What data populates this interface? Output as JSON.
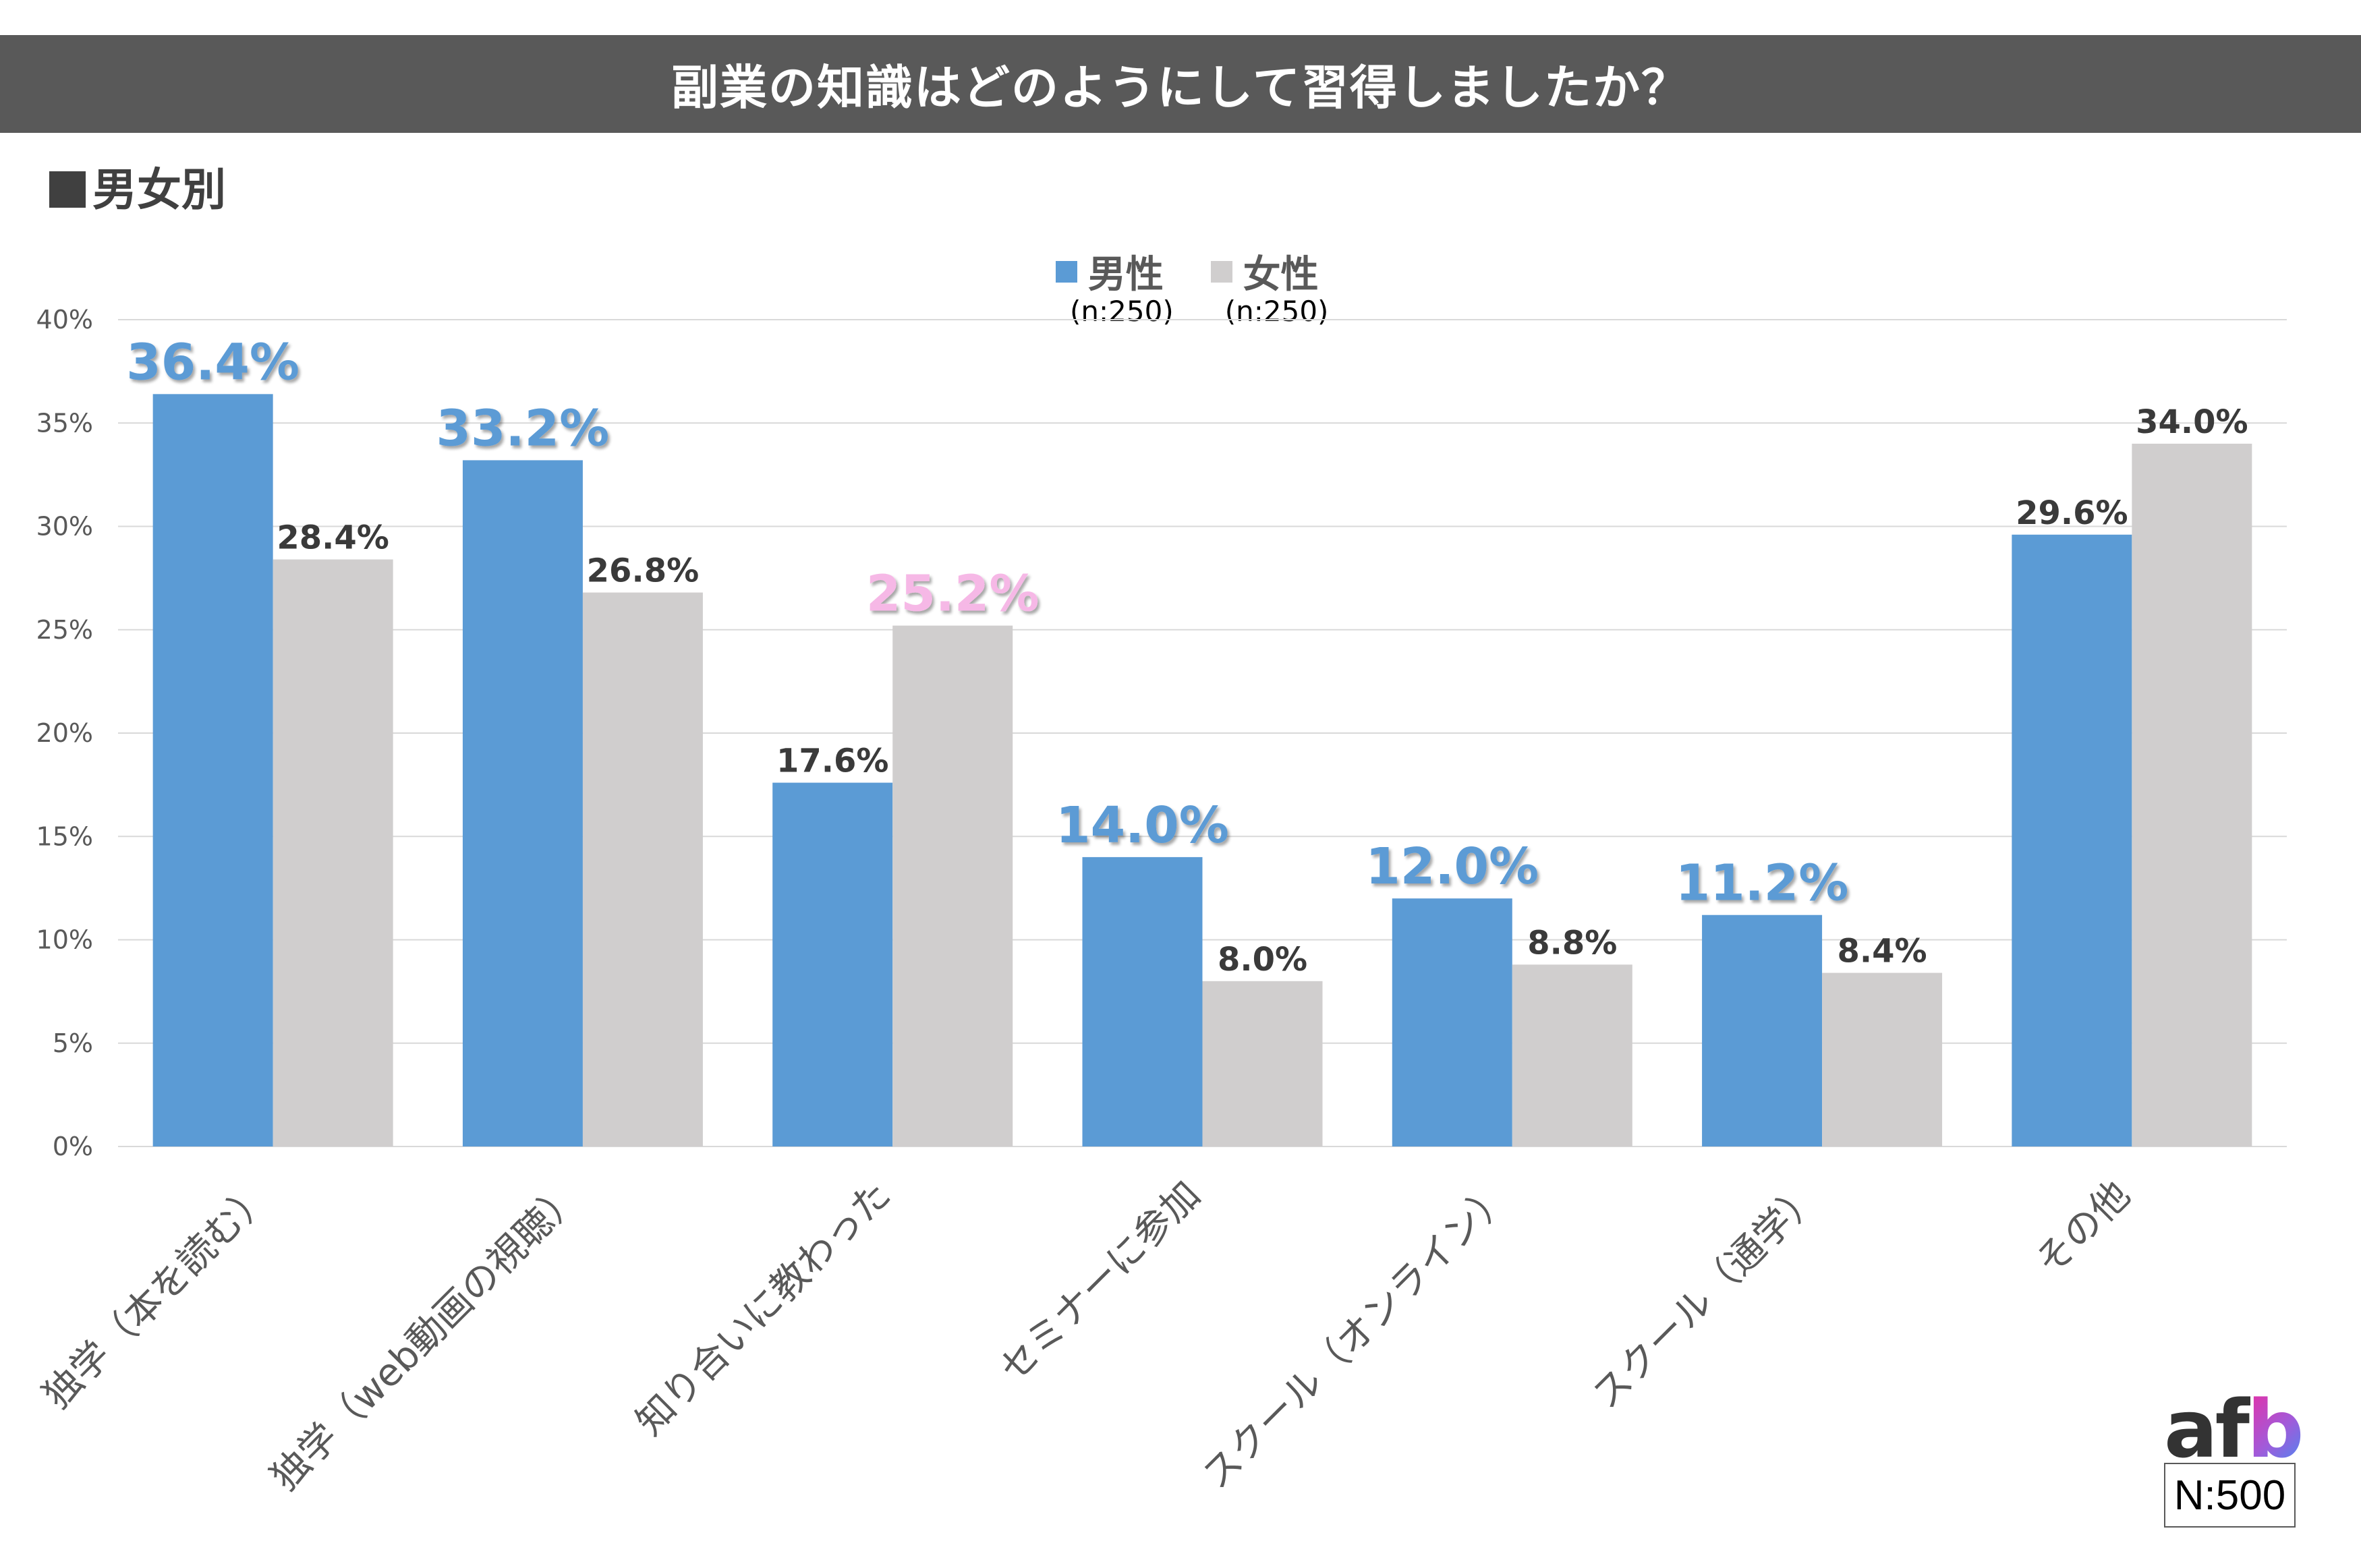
{
  "header": {
    "title": "副業の知識はどのようにして習得しましたか？"
  },
  "subtitle": "男女別",
  "legend": [
    {
      "label": "男性",
      "n": "(n:250)",
      "color": "#5b9bd5"
    },
    {
      "label": "女性",
      "n": "(n:250)",
      "color": "#d0cece"
    }
  ],
  "footer": {
    "logo_af": "af",
    "logo_b": "b",
    "sample_size": "N:500"
  },
  "colors": {
    "male_bar": "#5b9bd5",
    "female_bar": "#d0cece",
    "highlight_male_label": "#5b9bd5",
    "highlight_female_label": "#f6b8e6",
    "normal_label": "#3a3a3a",
    "axis_text": "#595959",
    "gridline": "#d9d9d9",
    "title_bar": "#595959"
  },
  "chart_data": {
    "type": "bar",
    "title": "副業の知識はどのようにして習得しましたか？",
    "subtitle": "男女別",
    "xlabel": "",
    "ylabel": "",
    "ylim": [
      0,
      40
    ],
    "y_ticks": [
      "0%",
      "5%",
      "10%",
      "15%",
      "20%",
      "25%",
      "30%",
      "35%",
      "40%"
    ],
    "grid": true,
    "legend_position": "top-center",
    "categories": [
      "独学（本を読む）",
      "独学（web動画の視聴）",
      "知り合いに教わった",
      "セミナーに参加",
      "スクール（オンライン）",
      "スクール（通学）",
      "その他"
    ],
    "series": [
      {
        "name": "男性",
        "n": "(n:250)",
        "values": [
          36.4,
          33.2,
          17.6,
          14.0,
          12.0,
          11.2,
          29.6
        ],
        "labels": [
          "36.4%",
          "33.2%",
          "17.6%",
          "14.0%",
          "12.0%",
          "11.2%",
          "29.6%"
        ],
        "highlight": [
          true,
          true,
          false,
          true,
          true,
          true,
          false
        ]
      },
      {
        "name": "女性",
        "n": "(n:250)",
        "values": [
          28.4,
          26.8,
          25.2,
          8.0,
          8.8,
          8.4,
          34.0
        ],
        "labels": [
          "28.4%",
          "26.8%",
          "25.2%",
          "8.0%",
          "8.8%",
          "8.4%",
          "34.0%"
        ],
        "highlight": [
          false,
          false,
          true,
          false,
          false,
          false,
          false
        ]
      }
    ]
  }
}
